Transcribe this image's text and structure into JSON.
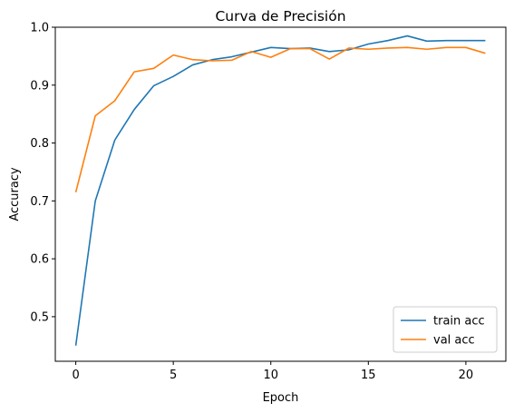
{
  "chart_data": {
    "type": "line",
    "title": "Curva de Precisión",
    "xlabel": "Epoch",
    "ylabel": "Accuracy",
    "xlim": [
      -1.05,
      22.05
    ],
    "ylim": [
      0.423,
      1.0
    ],
    "xticks": [
      0,
      5,
      10,
      15,
      20
    ],
    "yticks": [
      0.5,
      0.6,
      0.7,
      0.8,
      0.9,
      1.0
    ],
    "xtick_labels": [
      "0",
      "5",
      "10",
      "15",
      "20"
    ],
    "ytick_labels": [
      "0.5",
      "0.6",
      "0.7",
      "0.8",
      "0.9",
      "1.0"
    ],
    "grid": false,
    "legend_position": "lower-right",
    "x": [
      0,
      1,
      2,
      3,
      4,
      5,
      6,
      7,
      8,
      9,
      10,
      11,
      12,
      13,
      14,
      15,
      16,
      17,
      18,
      19,
      20,
      21
    ],
    "series": [
      {
        "name": "train acc",
        "color": "#1f77b4",
        "values": [
          0.45,
          0.7,
          0.805,
          0.858,
          0.899,
          0.915,
          0.935,
          0.944,
          0.949,
          0.957,
          0.965,
          0.963,
          0.964,
          0.958,
          0.961,
          0.971,
          0.977,
          0.985,
          0.976,
          0.977,
          0.977,
          0.977
        ]
      },
      {
        "name": "val acc",
        "color": "#ff7f0e",
        "values": [
          0.715,
          0.847,
          0.873,
          0.923,
          0.929,
          0.952,
          0.944,
          0.942,
          0.943,
          0.958,
          0.948,
          0.963,
          0.963,
          0.945,
          0.964,
          0.962,
          0.964,
          0.965,
          0.962,
          0.965,
          0.965,
          0.955
        ]
      }
    ]
  }
}
